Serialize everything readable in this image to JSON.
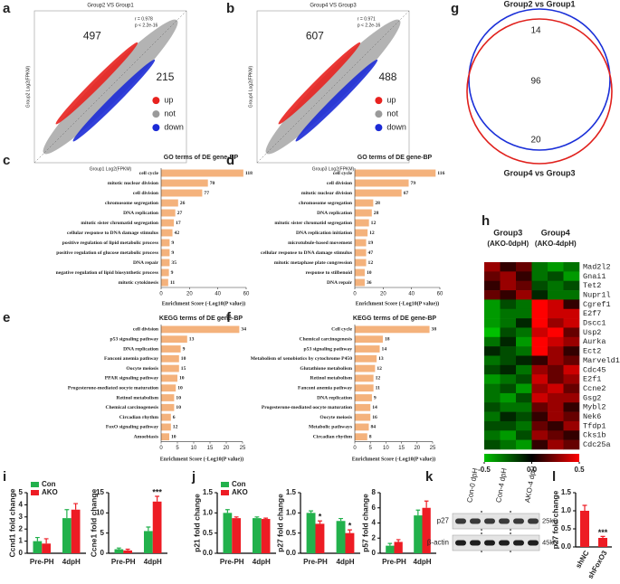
{
  "panel_labels": [
    "a",
    "b",
    "c",
    "d",
    "e",
    "f",
    "g",
    "h",
    "i",
    "j",
    "k",
    "l"
  ],
  "chart_data": [
    {
      "type": "scatter",
      "title": "Group2 VS Group1",
      "stats": [
        "r = 0.978",
        "p < 2.2e-16"
      ],
      "up_count": 497,
      "down_count": 215,
      "xlabel": "Group1 Log2(FPKM)",
      "ylabel": "Group2 Log2(FPKM)",
      "legend_items": [
        {
          "name": "up",
          "color": "#e8221f"
        },
        {
          "name": "not",
          "color": "#9a9a9a"
        },
        {
          "name": "down",
          "color": "#1c2bd6"
        }
      ]
    },
    {
      "type": "scatter",
      "title": "Group4 VS Group3",
      "stats": [
        "r = 0.971",
        "p < 2.2e-16"
      ],
      "up_count": 607,
      "down_count": 488,
      "xlabel": "Group3 Log2(FPKM)",
      "ylabel": "Group4 Log2(FPKM)",
      "legend_items": [
        {
          "name": "up",
          "color": "#e8221f"
        },
        {
          "name": "not",
          "color": "#9a9a9a"
        },
        {
          "name": "down",
          "color": "#1c2bd6"
        }
      ]
    },
    {
      "type": "hbar",
      "title": "GO terms of DE gene-BP",
      "xlabel": "Enrichment Score (-Log10(P value))",
      "color": "#f4b27c",
      "categories": [
        "cell cycle",
        "mitotic nuclear division",
        "cell division",
        "chromosome segregation",
        "DNA replication",
        "mitotic sister chromatid segregation",
        "cellular response to DNA damage stimulus",
        "positive regulation of lipid metabolic process",
        "positive regulation of glucose metabolic process",
        "DNA repair",
        "negative regulation of lipid biosynthetic process",
        "mitotic cytokinesis"
      ],
      "values": [
        58,
        33,
        29,
        12,
        10,
        9,
        8,
        6,
        6,
        6,
        5.5,
        5
      ],
      "gene_counts": [
        118,
        70,
        77,
        26,
        27,
        17,
        42,
        9,
        9,
        35,
        9,
        11
      ],
      "xlim": [
        0,
        60
      ],
      "xticks": [
        0,
        20,
        40,
        60
      ]
    },
    {
      "type": "hbar",
      "title": "GO terms of DE gene-BP",
      "xlabel": "Enrichment Score (-Log10(P value))",
      "color": "#f4b27c",
      "categories": [
        "cell cycle",
        "cell division",
        "mitotic nuclear division",
        "chromosome segregation",
        "DNA replication",
        "mitotic sister chromatid segregation",
        "DNA replication initiation",
        "microtubule-based movement",
        "cellular response to DNA damage stimulus",
        "mitotic metaphase plate congression",
        "response to stilbenoid",
        "DNA repair"
      ],
      "values": [
        57,
        38,
        33,
        13,
        12,
        10,
        9,
        8,
        8,
        8,
        7,
        7
      ],
      "gene_counts": [
        116,
        79,
        67,
        28,
        28,
        12,
        12,
        19,
        47,
        12,
        10,
        36
      ],
      "xlim": [
        0,
        60
      ],
      "xticks": [
        0,
        20,
        40,
        60
      ]
    },
    {
      "type": "hbar",
      "title": "KEGG terms of DE gene-BP",
      "xlabel": "Enrichment Score (-Log10(P value))",
      "color": "#f4b27c",
      "categories": [
        "cell division",
        "p53 signaling pathway",
        "DNA replication",
        "Fanconi anemia pathway",
        "Oocyte meiosis",
        "PPAR signaling pathway",
        "Progesterone-mediated oocyte maturation",
        "Retinol metabolism",
        "Chemical carcinogenesis",
        "Circadian rhythm",
        "FoxO signaling pathway",
        "Amoebiasis"
      ],
      "values": [
        24,
        8,
        6,
        5.5,
        5.5,
        5,
        4.5,
        4,
        4,
        3,
        3,
        2.5
      ],
      "gene_counts": [
        34,
        13,
        9,
        10,
        15,
        10,
        10,
        10,
        10,
        6,
        12,
        10
      ],
      "xlim": [
        0,
        25
      ],
      "xticks": [
        0,
        5,
        10,
        15,
        20,
        25
      ]
    },
    {
      "type": "hbar",
      "title": "KEGG terms of DE gene-BP",
      "xlabel": "Enrichment Score (-Log10(P value))",
      "color": "#f4b27c",
      "categories": [
        "Cell cycle",
        "Chemical carcinogenesis",
        "p53 signaling pathway",
        "Metabolism of xenobiotics by cytochrome P450",
        "Glutathione metabolism",
        "Retinol metabolism",
        "Fanconi anemia pathway",
        "DNA replication",
        "Progesterone-mediated oocyte maturation",
        "Oocyte meiosis",
        "Metabolic pathways",
        "Circadian rhythm"
      ],
      "values": [
        24,
        9,
        8,
        7,
        6.5,
        6,
        6,
        5.5,
        5,
        5,
        4.5,
        4
      ],
      "gene_counts": [
        38,
        18,
        14,
        13,
        12,
        12,
        11,
        9,
        14,
        16,
        84,
        8
      ],
      "xlim": [
        0,
        25
      ],
      "xticks": [
        0,
        5,
        10,
        15,
        20,
        25
      ]
    },
    {
      "type": "bar",
      "ylabel": "Ccnd1 fold change",
      "categories": [
        "Pre-PH",
        "4dpH"
      ],
      "ylim": [
        0,
        5
      ],
      "yticks": [
        0,
        1,
        2,
        3,
        4,
        5
      ],
      "legend": "top-left",
      "series": [
        {
          "name": "Con",
          "color": "#22b14c",
          "values": [
            1.0,
            2.9
          ],
          "errors": [
            0.3,
            0.7
          ]
        },
        {
          "name": "AKO",
          "color": "#ed1c24",
          "values": [
            0.8,
            3.6
          ],
          "errors": [
            0.4,
            0.5
          ]
        }
      ]
    },
    {
      "type": "bar",
      "ylabel": "Ccne1 fold change",
      "categories": [
        "Pre-PH",
        "4dpH"
      ],
      "ylim": [
        0,
        15
      ],
      "yticks": [
        0,
        5,
        10,
        15
      ],
      "series": [
        {
          "color": "#22b14c",
          "values": [
            1.0,
            5.5
          ],
          "errors": [
            0.3,
            1.0
          ]
        },
        {
          "color": "#ed1c24",
          "values": [
            0.7,
            12.8
          ],
          "errors": [
            0.3,
            1.3
          ],
          "significance": [
            null,
            "***"
          ]
        }
      ]
    },
    {
      "type": "bar",
      "ylabel": "p21 fold change",
      "categories": [
        "Pre-PH",
        "4dpH"
      ],
      "ylim": [
        0,
        1.5
      ],
      "yticks": [
        {
          "value": 0,
          "label": "0.0"
        },
        0.5,
        {
          "value": 1,
          "label": "1.0"
        },
        1.5
      ],
      "legend": "top-left",
      "series": [
        {
          "name": "Con",
          "color": "#22b14c",
          "values": [
            1.0,
            0.87
          ],
          "errors": [
            0.08,
            0.03
          ]
        },
        {
          "name": "AKO",
          "color": "#ed1c24",
          "values": [
            0.87,
            0.85
          ],
          "errors": [
            0.03,
            0.02
          ]
        }
      ]
    },
    {
      "type": "bar",
      "ylabel": "p27 fold change",
      "categories": [
        "Pre-PH",
        "4dpH"
      ],
      "ylim": [
        0,
        1.5
      ],
      "yticks": [
        {
          "value": 0,
          "label": "0.0"
        },
        0.5,
        {
          "value": 1,
          "label": "1.0"
        },
        1.5
      ],
      "series": [
        {
          "color": "#22b14c",
          "values": [
            1.0,
            0.8
          ],
          "errors": [
            0.05,
            0.06
          ]
        },
        {
          "color": "#ed1c24",
          "values": [
            0.73,
            0.5
          ],
          "errors": [
            0.07,
            0.08
          ],
          "significance": [
            "*",
            "*"
          ]
        }
      ]
    },
    {
      "type": "bar",
      "ylabel": "p57 fold change",
      "categories": [
        "Pre-PH",
        "4dpH"
      ],
      "ylim": [
        0,
        8
      ],
      "yticks": [
        0,
        2,
        4,
        6,
        8
      ],
      "series": [
        {
          "color": "#22b14c",
          "values": [
            1.0,
            5.0
          ],
          "errors": [
            0.3,
            0.7
          ]
        },
        {
          "color": "#ed1c24",
          "values": [
            1.5,
            6.0
          ],
          "errors": [
            0.3,
            0.9
          ]
        }
      ]
    },
    {
      "type": "bar",
      "ylabel": "p27 fold change",
      "categories": [
        "shNC",
        "shFoxO3"
      ],
      "ylim": [
        0,
        1.5
      ],
      "yticks": [
        {
          "value": 0,
          "label": "0.0"
        },
        0.5,
        {
          "value": 1,
          "label": "1.0"
        },
        1.5
      ],
      "series": [
        {
          "color": "#ed1c24",
          "values": [
            1.0,
            0.25
          ],
          "errors": [
            0.15,
            0.04
          ],
          "significance": [
            null,
            "***"
          ]
        }
      ]
    }
  ],
  "venn": {
    "sets": [
      {
        "name": "Group2 vs Group1",
        "color": "#1a2fd8"
      },
      {
        "name": "Group4 vs Group3",
        "color": "#e0201c"
      }
    ],
    "only_first": 14,
    "both": 96,
    "only_second": 20
  },
  "heatmap": {
    "groups": [
      {
        "name": "Group3",
        "subtitle": "(AKO-0dpH)"
      },
      {
        "name": "Group4",
        "subtitle": "(AKO-4dpH)"
      }
    ],
    "genes": [
      "Mad2l2",
      "Gnai1",
      "Tet2",
      "Nupr1l",
      "Cgref1",
      "E2f7",
      "Dscc1",
      "Usp2",
      "Aurka",
      "Ect2",
      "Marveld1",
      "Cdc45",
      "E2f1",
      "Ccne2",
      "Gsg2",
      "Mybl2",
      "Nek6",
      "Tfdp1",
      "Cks1b",
      "Cdc25a"
    ],
    "values": [
      [
        0.3,
        0.1,
        0.2,
        -0.3,
        -0.4,
        -0.3
      ],
      [
        0.2,
        0.3,
        0.1,
        -0.3,
        -0.2,
        -0.4
      ],
      [
        0.1,
        0.3,
        0.2,
        -0.2,
        -0.3,
        -0.2
      ],
      [
        0.2,
        0.1,
        0.3,
        -0.1,
        -0.3,
        -0.3
      ],
      [
        -0.4,
        -0.2,
        -0.3,
        0.5,
        0.4,
        0.1
      ],
      [
        -0.4,
        -0.3,
        -0.3,
        0.5,
        0.4,
        0.4
      ],
      [
        -0.4,
        -0.3,
        -0.1,
        0.5,
        0.3,
        0.4
      ],
      [
        -0.5,
        -0.2,
        -0.3,
        0.4,
        0.5,
        0.2
      ],
      [
        -0.3,
        -0.1,
        -0.4,
        0.5,
        0.4,
        0.3
      ],
      [
        -0.1,
        -0.2,
        -0.3,
        0.5,
        0.3,
        0.1
      ],
      [
        -0.3,
        -0.2,
        -0.1,
        0.1,
        0.3,
        0.2
      ],
      [
        -0.2,
        -0.1,
        -0.3,
        0.3,
        0.2,
        0.4
      ],
      [
        -0.4,
        -0.3,
        -0.2,
        0.4,
        0.2,
        0.3
      ],
      [
        -0.3,
        -0.2,
        -0.4,
        0.3,
        0.4,
        0.2
      ],
      [
        -0.3,
        -0.4,
        -0.2,
        0.4,
        0.3,
        0.3
      ],
      [
        -0.2,
        -0.3,
        -0.3,
        0.2,
        0.3,
        0.1
      ],
      [
        -0.3,
        -0.1,
        -0.2,
        0.1,
        0.3,
        0.2
      ],
      [
        -0.2,
        -0.2,
        -0.3,
        0.2,
        0.1,
        0.3
      ],
      [
        -0.3,
        -0.4,
        -0.2,
        0.3,
        0.2,
        0.1
      ],
      [
        -0.2,
        -0.3,
        -0.4,
        0.1,
        0.3,
        0.2
      ]
    ],
    "range": [
      -0.5,
      0.5
    ],
    "ticks": [
      -0.5,
      {
        "value": 0,
        "label": "0.0"
      },
      0.5
    ],
    "colors": [
      "#00c000",
      "#000000",
      "#ff0000"
    ]
  },
  "blot": {
    "lanes": [
      "Con-0 dpH",
      "Con-4 dpH",
      "AKO-4 dpH"
    ],
    "proteins": [
      "p27",
      "β-actin"
    ],
    "sizes": [
      "25kD",
      "45kD"
    ]
  }
}
